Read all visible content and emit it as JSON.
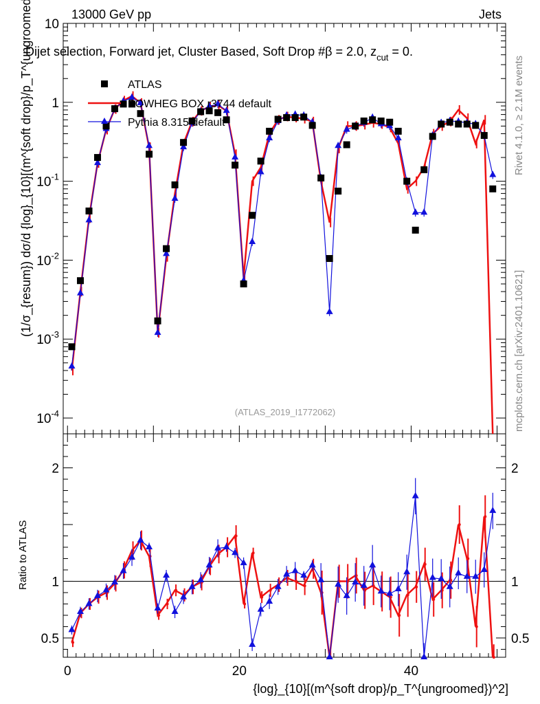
{
  "header": {
    "energy": "13000 GeV pp",
    "category": "Jets",
    "subtitle": "Dijet selection, Forward jet, Cluster Based, Soft Drop #β = 2.0, z",
    "subtitle_sub": "cut",
    "subtitle_tail": " = 0.",
    "rivet": "Rivet 4.1.0, ≥ 2.1M events",
    "mcplots": "mcplots.cern.ch [arXiv:2401.10621]",
    "analysis": "(ATLAS_2019_I1772062)"
  },
  "axes": {
    "ylabel_main": "(1/σ_{resum}) dσ/d {log}_{10}[(m^{soft drop}/p_T^{ungroomed})^2]",
    "ylabel_ratio": "Ratio to ATLAS",
    "xlabel": "{log}_{10}[(m^{soft drop}/p_T^{ungroomed})^2]"
  },
  "legend": {
    "data": "ATLAS",
    "powheg": "POWHEG BOX r3744 default",
    "pythia": "Pythia 8.315 default"
  },
  "colors": {
    "data": "#000000",
    "powheg": "#ee1111",
    "pythia": "#1111dd"
  },
  "chart_data": {
    "type": "scatter",
    "xlim": [
      -0.5,
      51
    ],
    "ylim_main_log10": [
      -4.2,
      1.0
    ],
    "ylim_ratio": [
      0.33,
      2.3
    ],
    "x_ticks": [
      0,
      20,
      40
    ],
    "ratio_ticks": [
      0.5,
      1,
      2
    ],
    "x": [
      0.5,
      1.5,
      2.5,
      3.5,
      4.5,
      5.5,
      6.5,
      7.5,
      8.5,
      9.5,
      10.5,
      11.5,
      12.5,
      13.5,
      14.5,
      15.5,
      16.5,
      17.5,
      18.5,
      19.5,
      20.5,
      21.5,
      22.5,
      23.5,
      24.5,
      25.5,
      26.5,
      27.5,
      28.5,
      29.5,
      30.5,
      31.5,
      32.5,
      33.5,
      34.5,
      35.5,
      36.5,
      37.5,
      38.5,
      39.5,
      40.5,
      41.5,
      42.5,
      43.5,
      44.5,
      45.5,
      46.5,
      47.5,
      48.5,
      49.5
    ],
    "series": [
      {
        "name": "ATLAS",
        "marker": "square",
        "values": [
          0.0008,
          0.0055,
          0.042,
          0.2,
          0.5,
          0.83,
          0.95,
          0.95,
          0.72,
          0.22,
          0.0017,
          0.014,
          0.09,
          0.31,
          0.58,
          0.76,
          0.78,
          0.74,
          0.6,
          0.16,
          0.005,
          0.037,
          0.18,
          0.43,
          0.61,
          0.64,
          0.64,
          0.65,
          0.51,
          0.11,
          0.0105,
          0.075,
          0.29,
          0.5,
          0.58,
          0.6,
          0.58,
          0.56,
          0.43,
          0.1,
          0.024,
          0.14,
          0.37,
          0.53,
          0.56,
          0.53,
          0.53,
          0.51,
          0.38,
          0.08
        ]
      },
      {
        "name": "POWHEG BOX r3744 default",
        "line": "solid",
        "values": [
          0.0004,
          0.004,
          0.034,
          0.17,
          0.45,
          0.82,
          1.05,
          1.2,
          0.98,
          0.27,
          0.0012,
          0.011,
          0.07,
          0.3,
          0.57,
          0.78,
          0.88,
          0.92,
          0.78,
          0.22,
          0.006,
          0.1,
          0.15,
          0.4,
          0.6,
          0.66,
          0.64,
          0.62,
          0.57,
          0.1,
          0.03,
          0.26,
          0.5,
          0.5,
          0.52,
          0.55,
          0.53,
          0.48,
          0.3,
          0.08,
          0.1,
          0.15,
          0.4,
          0.5,
          0.57,
          0.8,
          0.63,
          0.3,
          0.6,
          5e-05
        ],
        "ratio": [
          0.46,
          0.72,
          0.8,
          0.86,
          0.9,
          0.98,
          1.1,
          1.27,
          1.36,
          1.22,
          0.7,
          0.8,
          0.92,
          0.88,
          0.95,
          0.99,
          1.13,
          1.24,
          1.3,
          1.4,
          0.8,
          1.25,
          0.86,
          0.92,
          0.97,
          1.03,
          1.0,
          0.96,
          1.11,
          0.9,
          0.25,
          1.0,
          1.0,
          1.05,
          0.92,
          0.96,
          0.91,
          0.86,
          0.7,
          0.88,
          0.95,
          1.15,
          0.84,
          0.92,
          1.01,
          1.5,
          1.2,
          0.6,
          1.57,
          0.25
        ]
      },
      {
        "name": "Pythia 8.315 default",
        "marker": "triangle",
        "values": [
          0.00045,
          0.0038,
          0.032,
          0.17,
          0.46,
          0.83,
          1.03,
          1.15,
          0.98,
          0.28,
          0.0012,
          0.012,
          0.06,
          0.27,
          0.55,
          0.77,
          0.89,
          0.95,
          0.78,
          0.2,
          0.0055,
          0.017,
          0.13,
          0.35,
          0.58,
          0.68,
          0.7,
          0.68,
          0.56,
          0.11,
          0.0022,
          0.28,
          0.45,
          0.5,
          0.55,
          0.64,
          0.53,
          0.5,
          0.35,
          0.1,
          0.04,
          0.04,
          0.38,
          0.55,
          0.58,
          0.57,
          0.55,
          0.53,
          0.38,
          0.12
        ],
        "ratio": [
          0.57,
          0.73,
          0.8,
          0.87,
          0.92,
          0.99,
          1.09,
          1.21,
          1.36,
          1.3,
          0.76,
          1.05,
          0.73,
          0.86,
          0.95,
          1.01,
          1.14,
          1.29,
          1.3,
          1.25,
          1.16,
          0.44,
          0.75,
          0.82,
          0.95,
          1.06,
          1.09,
          1.05,
          1.14,
          1.01,
          0.21,
          0.97,
          0.87,
          0.99,
          0.96,
          1.14,
          0.91,
          0.89,
          0.93,
          1.08,
          1.75,
          0.29,
          1.03,
          1.02,
          0.95,
          1.07,
          1.04,
          1.04,
          1.1,
          1.62
        ]
      }
    ]
  }
}
